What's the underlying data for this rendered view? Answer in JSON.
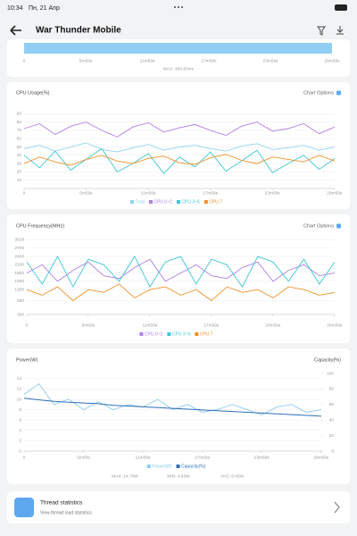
{
  "status_bar": {
    "time": "10:34",
    "date": "Пн, 21 Апр"
  },
  "header": {
    "title": "War Thunder Mobile"
  },
  "frame_card": {
    "xtick_labels": [
      "0",
      "5m59s",
      "11m59s",
      "17m59s",
      "23m59s",
      "29m59s"
    ],
    "max_label": "MAX: 366.83ms"
  },
  "chart_data": [
    {
      "type": "line",
      "title": "CPU Usage(%)",
      "options_label": "Chart Options",
      "x": [
        0,
        90,
        180,
        270,
        360,
        450,
        540,
        630,
        720,
        810,
        900,
        990,
        1080,
        1170,
        1260,
        1350,
        1440,
        1530,
        1620,
        1710,
        1800
      ],
      "xlim": [
        0,
        1800
      ],
      "xticks": [
        {
          "value": 0,
          "label": "0"
        },
        {
          "value": 359,
          "label": "5m59s"
        },
        {
          "value": 719,
          "label": "11m59s"
        },
        {
          "value": 1079,
          "label": "17m59s"
        },
        {
          "value": 1439,
          "label": "23m59s"
        },
        {
          "value": 1799,
          "label": "29m59s"
        }
      ],
      "ylim": [
        0,
        100
      ],
      "yticks": [
        10,
        20,
        30,
        40,
        50,
        60,
        70,
        80,
        90
      ],
      "grid": true,
      "series": [
        {
          "name": "Total",
          "color": "#8fd3f0",
          "values": [
            48,
            52,
            45,
            50,
            55,
            47,
            44,
            49,
            53,
            46,
            50,
            52,
            48,
            45,
            51,
            54,
            47,
            49,
            52,
            46,
            50
          ]
        },
        {
          "name": "CPU 0~2",
          "color": "#b07ee8",
          "values": [
            72,
            78,
            65,
            75,
            80,
            70,
            62,
            74,
            79,
            68,
            73,
            77,
            70,
            64,
            75,
            80,
            69,
            72,
            78,
            66,
            74
          ]
        },
        {
          "name": "CPU 3~6",
          "color": "#3ec6d6",
          "values": [
            40,
            25,
            45,
            22,
            35,
            48,
            20,
            30,
            42,
            18,
            38,
            26,
            44,
            21,
            33,
            46,
            19,
            30,
            40,
            23,
            36
          ]
        },
        {
          "name": "CPU 7",
          "color": "#f0922c",
          "values": [
            30,
            38,
            32,
            28,
            35,
            40,
            33,
            30,
            36,
            39,
            31,
            29,
            37,
            41,
            34,
            30,
            38,
            35,
            32,
            40,
            33
          ]
        }
      ]
    },
    {
      "type": "line",
      "title": "CPU Frequency(MHz)",
      "options_label": "Chart Options",
      "x": [
        0,
        90,
        180,
        270,
        360,
        450,
        540,
        630,
        720,
        810,
        900,
        990,
        1080,
        1170,
        1260,
        1350,
        1440,
        1530,
        1620,
        1710,
        1800
      ],
      "xlim": [
        0,
        1800
      ],
      "xticks": [
        {
          "value": 0,
          "label": "0"
        },
        {
          "value": 359,
          "label": "5m59s"
        },
        {
          "value": 719,
          "label": "11m59s"
        },
        {
          "value": 1079,
          "label": "17m59s"
        },
        {
          "value": 1439,
          "label": "23m59s"
        },
        {
          "value": 1799,
          "label": "29m59s"
        }
      ],
      "ylim": [
        300,
        3018
      ],
      "yticks": [
        300,
        800,
        1200,
        1500,
        1800,
        2100,
        2400,
        2700,
        3018
      ],
      "grid": true,
      "series": [
        {
          "name": "CPU 0~2",
          "color": "#b07ee8",
          "values": [
            1800,
            2100,
            1500,
            1900,
            2200,
            1700,
            1600,
            2000,
            2300,
            1500,
            1800,
            2100,
            1700,
            1600,
            2000,
            2200,
            1500,
            1900,
            2100,
            1700,
            1800
          ]
        },
        {
          "name": "CPU 3~6",
          "color": "#3ec6d6",
          "values": [
            2200,
            1400,
            2400,
            1300,
            2300,
            2100,
            1500,
            2400,
            1300,
            2200,
            2400,
            1400,
            2300,
            2100,
            1300,
            2400,
            2200,
            1500,
            2300,
            1400,
            2200
          ]
        },
        {
          "name": "CPU 7",
          "color": "#f0922c",
          "values": [
            1200,
            1000,
            1300,
            800,
            1200,
            1100,
            1400,
            900,
            1200,
            1300,
            1000,
            1200,
            800,
            1300,
            1100,
            1200,
            900,
            1300,
            1200,
            1000,
            1100
          ]
        }
      ]
    },
    {
      "type": "line",
      "title": "Power(W)",
      "y2_label": "Capacity(%)",
      "x": [
        0,
        90,
        180,
        270,
        360,
        450,
        540,
        630,
        720,
        810,
        900,
        990,
        1080,
        1170,
        1260,
        1350,
        1440,
        1530,
        1620,
        1710,
        1800
      ],
      "xlim": [
        0,
        1800
      ],
      "xticks": [
        {
          "value": 0,
          "label": "0"
        },
        {
          "value": 359,
          "label": "5m59s"
        },
        {
          "value": 719,
          "label": "11m59s"
        },
        {
          "value": 1079,
          "label": "17m59s"
        },
        {
          "value": 1439,
          "label": "23m59s"
        },
        {
          "value": 1799,
          "label": "29m59s"
        }
      ],
      "ylim": [
        0,
        15
      ],
      "yticks": [
        0,
        2,
        4,
        6,
        8,
        10,
        12,
        14
      ],
      "grid": true,
      "y2lim": [
        0,
        100
      ],
      "y2ticks": [
        0,
        20,
        40,
        60,
        80,
        100
      ],
      "series": [
        {
          "name": "Power(W)",
          "color": "#8ec9f0",
          "values": [
            11,
            13,
            9,
            10,
            8,
            9.5,
            8,
            9,
            8.5,
            10,
            8,
            9,
            7.5,
            8,
            9,
            8,
            7,
            8.5,
            9,
            7.5,
            8
          ]
        },
        {
          "name": "Capacity(%)",
          "color": "#2f6fb8",
          "axis": "y2",
          "values": [
            68,
            66,
            64,
            63,
            62,
            61,
            59,
            58,
            57,
            56,
            55,
            54,
            53,
            52,
            51,
            50,
            49,
            48,
            47,
            46,
            45
          ]
        }
      ],
      "stats": [
        "MAX: 14.70W",
        "MIN: 4.93W",
        "AVG: 8.45W"
      ]
    }
  ],
  "thread_card": {
    "title": "Thread statistics",
    "subtitle": "View thread load statistics"
  }
}
